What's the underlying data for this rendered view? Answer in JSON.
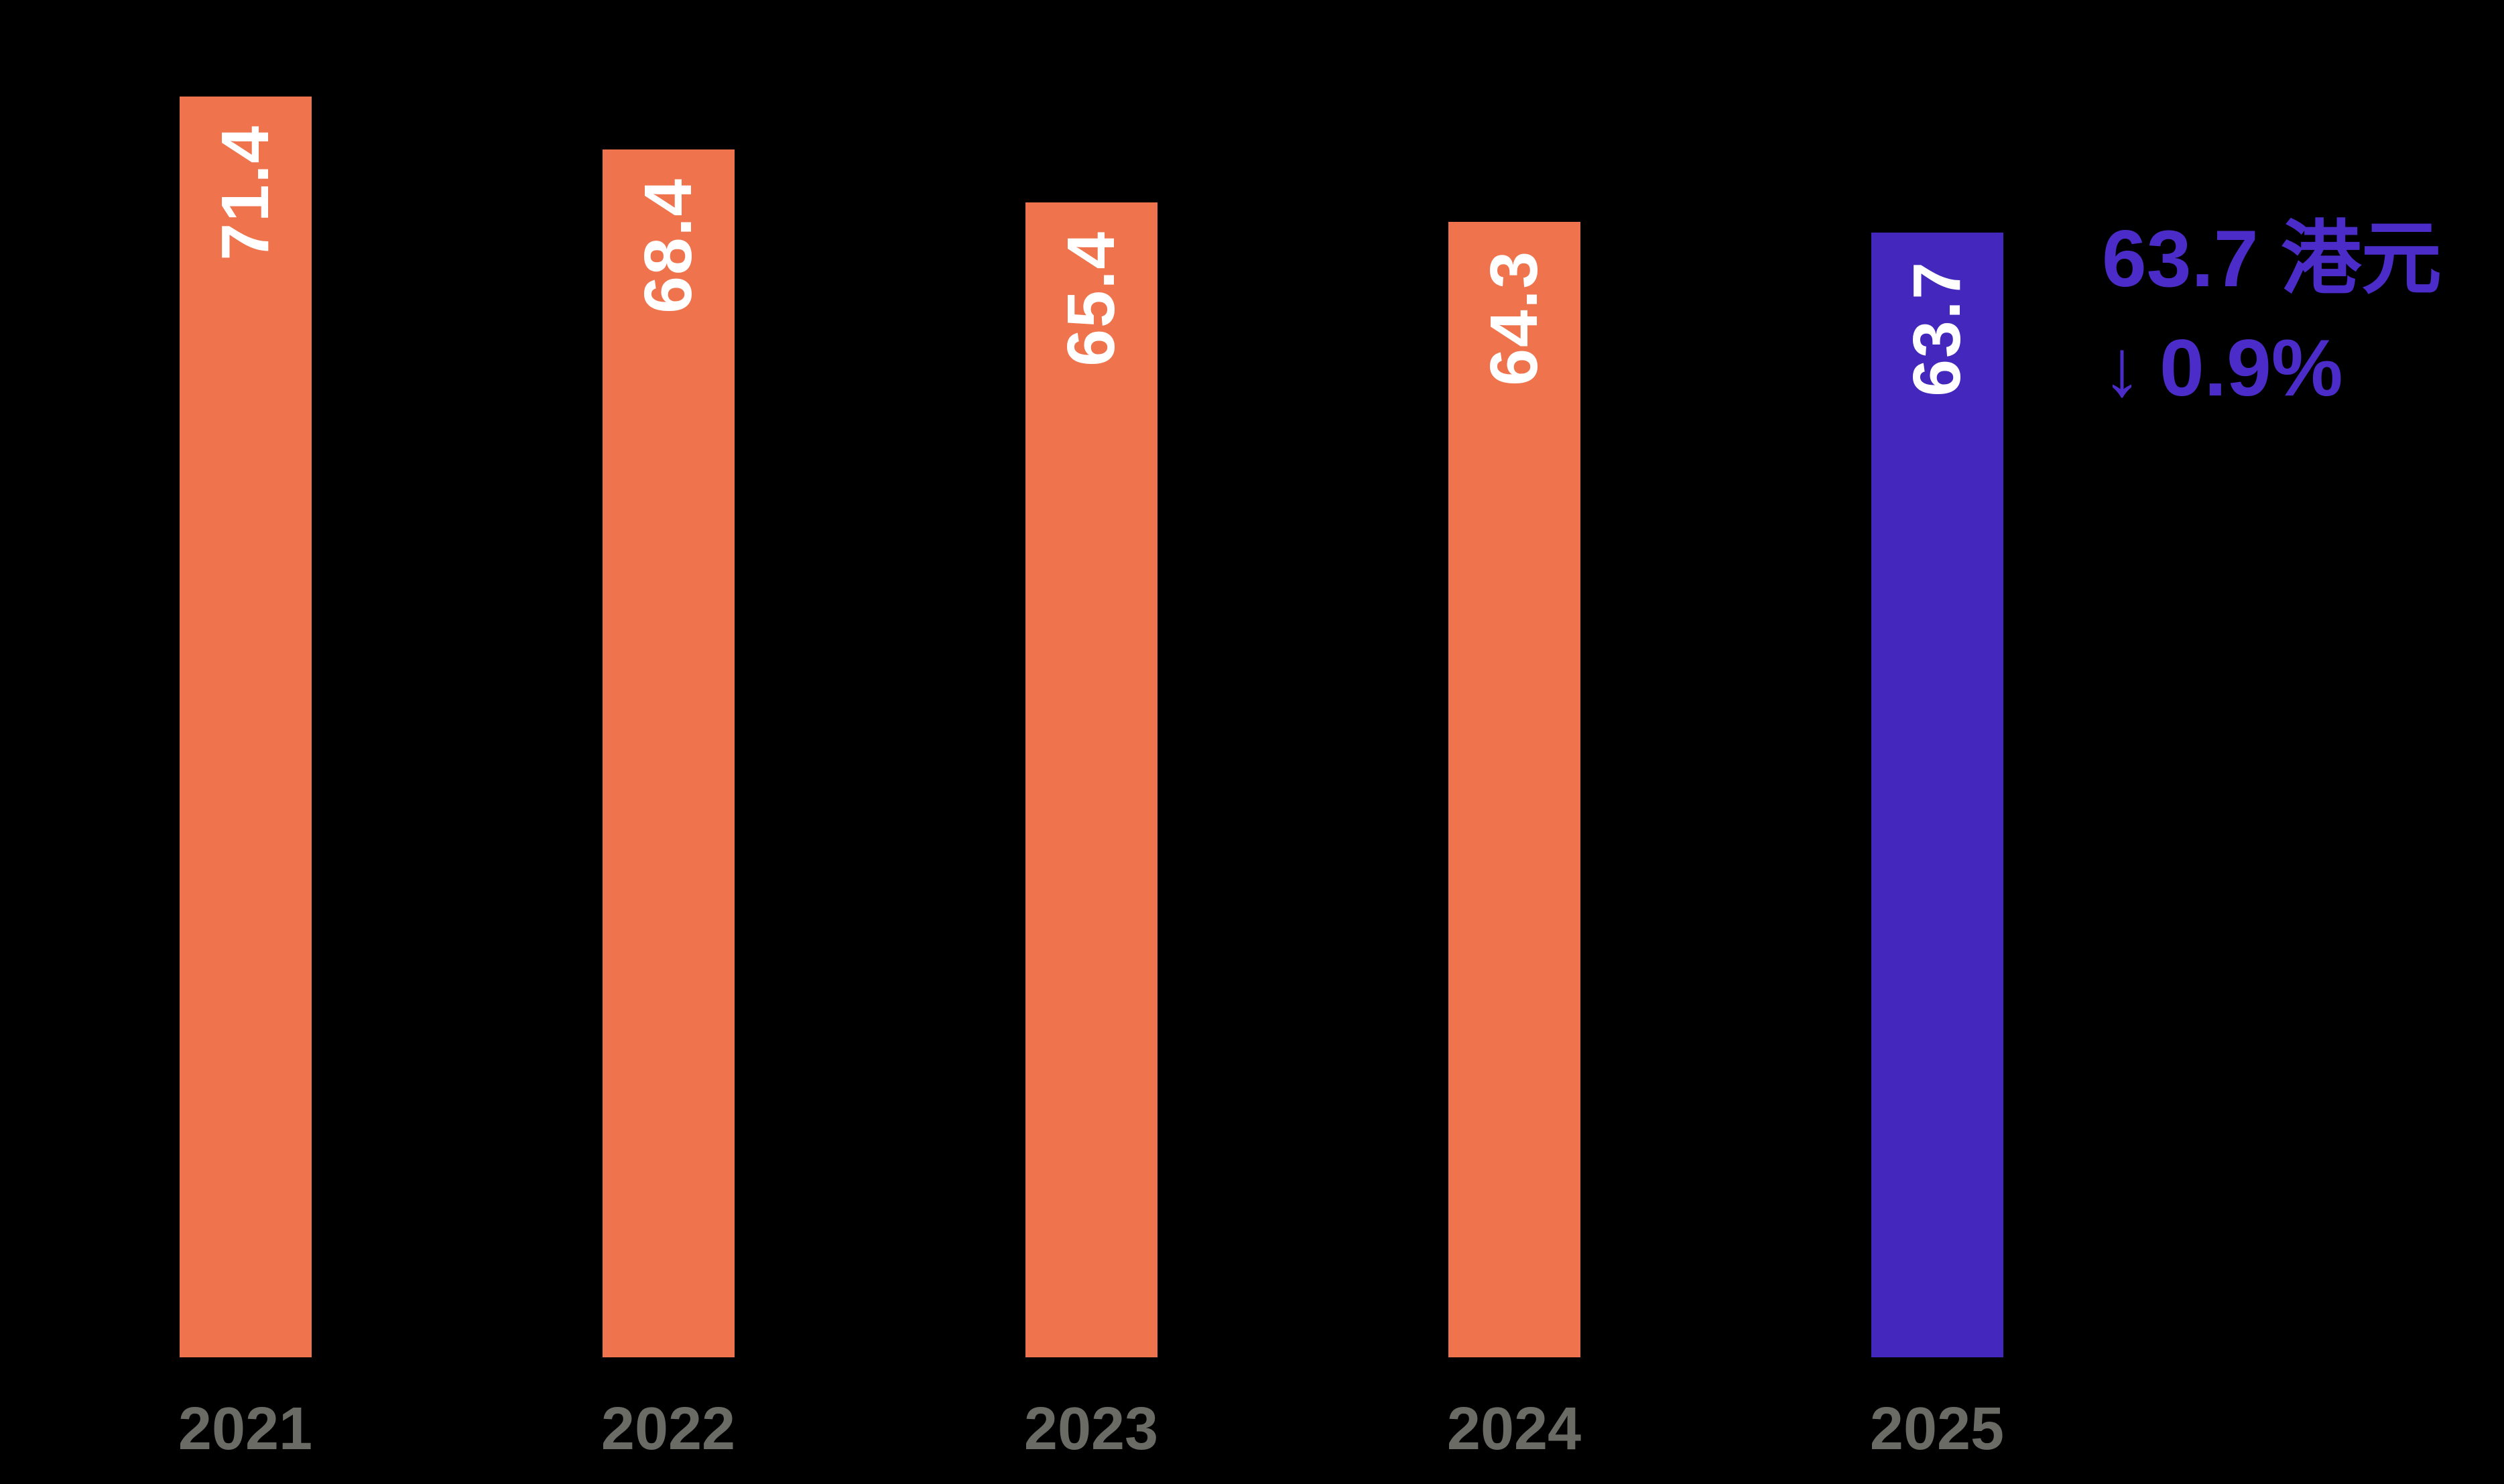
{
  "chart_data": {
    "type": "bar",
    "title": "",
    "xlabel": "",
    "ylabel": "",
    "categories": [
      "2021",
      "2022",
      "2023",
      "2024",
      "2025"
    ],
    "values": [
      71.4,
      68.4,
      65.4,
      64.3,
      63.7
    ],
    "bar_labels": [
      "71.4",
      "68.4",
      "65.4",
      "64.3",
      "63.7"
    ],
    "highlight_index": 4,
    "ylim": [
      0,
      75
    ],
    "grid": false,
    "legend_position": "none",
    "bar_label_rotation_deg": 90,
    "annotation": {
      "line1": "63.7 港元",
      "arrow": "↓",
      "change": "0.9%"
    },
    "colors": {
      "background": "#000000",
      "bar_default": "#EF744E",
      "bar_highlight": "#4427BC",
      "bar_value_label": "#FFFFFF",
      "category_label": "#6B6B65",
      "annotation_text": "#4B2CC8"
    }
  }
}
